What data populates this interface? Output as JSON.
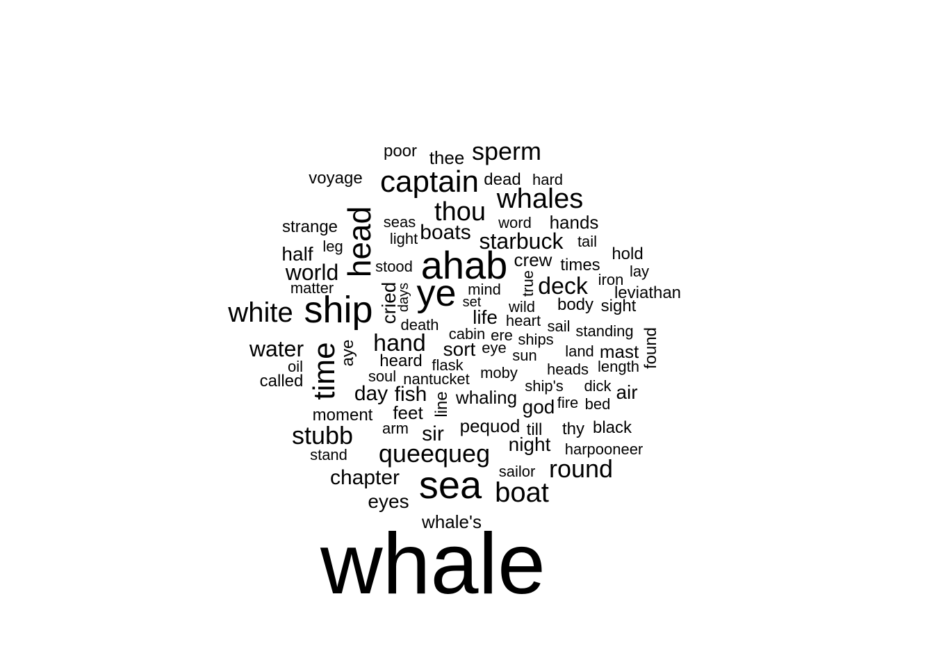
{
  "words": [
    "whale",
    "sea",
    "ahab",
    "ship",
    "ye",
    "head",
    "time",
    "captain",
    "whales",
    "sperm",
    "thou",
    "boat",
    "round",
    "stubb",
    "queequeg",
    "white",
    "hand",
    "starbuck",
    "deck",
    "water",
    "world",
    "boats",
    "sir",
    "day",
    "fish",
    "chapter",
    "eyes",
    "cried",
    "sort",
    "night",
    "pequod",
    "god",
    "life",
    "hands",
    "crew",
    "times",
    "air",
    "mast",
    "half",
    "found",
    "poor",
    "thee",
    "voyage",
    "strange",
    "dead",
    "hard",
    "seas",
    "word",
    "light",
    "tail",
    "leg",
    "hold",
    "stood",
    "lay",
    "iron",
    "matter",
    "mind",
    "leviathan",
    "days",
    "true",
    "set",
    "wild",
    "body",
    "sight",
    "death",
    "heart",
    "sail",
    "standing",
    "aye",
    "cabin",
    "ere",
    "ships",
    "eye",
    "sun",
    "land",
    "heard",
    "oil",
    "flask",
    "length",
    "called",
    "soul",
    "nantucket",
    "moby",
    "heads",
    "line",
    "ship's",
    "dick",
    "whaling",
    "fire",
    "bed",
    "moment",
    "feet",
    "arm",
    "till",
    "thy",
    "black",
    "stand",
    "harpooneer",
    "sailor",
    "whale's"
  ]
}
